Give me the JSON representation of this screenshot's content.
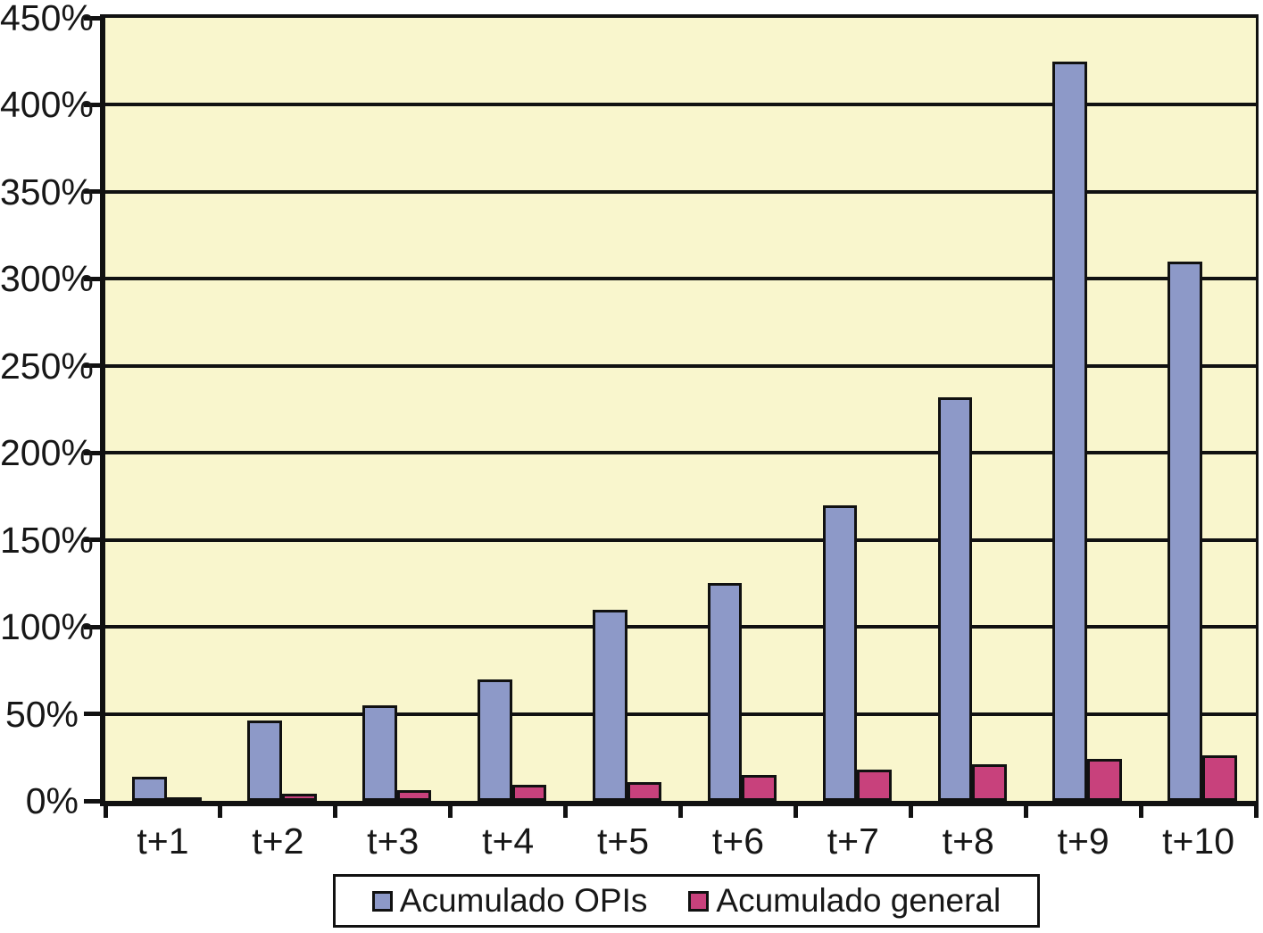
{
  "colors": {
    "plot_bg": "#f9f6cd",
    "outline": "#111111",
    "text": "#171717",
    "series_opis": "#8d99c8",
    "series_general": "#c8417c"
  },
  "chart_data": {
    "type": "bar",
    "title": "",
    "xlabel": "",
    "ylabel": "",
    "categories": [
      "t+1",
      "t+2",
      "t+3",
      "t+4",
      "t+5",
      "t+6",
      "t+7",
      "t+8",
      "t+9",
      "t+10"
    ],
    "series": [
      {
        "name": "Acumulado OPIs",
        "color": "#8d99c8",
        "values": [
          14,
          46,
          55,
          70,
          110,
          125,
          170,
          232,
          425,
          310
        ]
      },
      {
        "name": "Acumulado general",
        "color": "#c8417c",
        "values": [
          2,
          4,
          6,
          9,
          11,
          15,
          18,
          21,
          24,
          26
        ]
      }
    ],
    "ylim": [
      0,
      450
    ],
    "ytick_step": 50,
    "ytick_labels": [
      "0%",
      "50%",
      "100%",
      "150%",
      "200%",
      "250%",
      "300%",
      "350%",
      "400%",
      "450%"
    ],
    "grid": "horizontal",
    "legend_position": "bottom"
  },
  "legend": {
    "items": [
      {
        "label": "Acumulado OPIs"
      },
      {
        "label": "Acumulado general"
      }
    ]
  }
}
